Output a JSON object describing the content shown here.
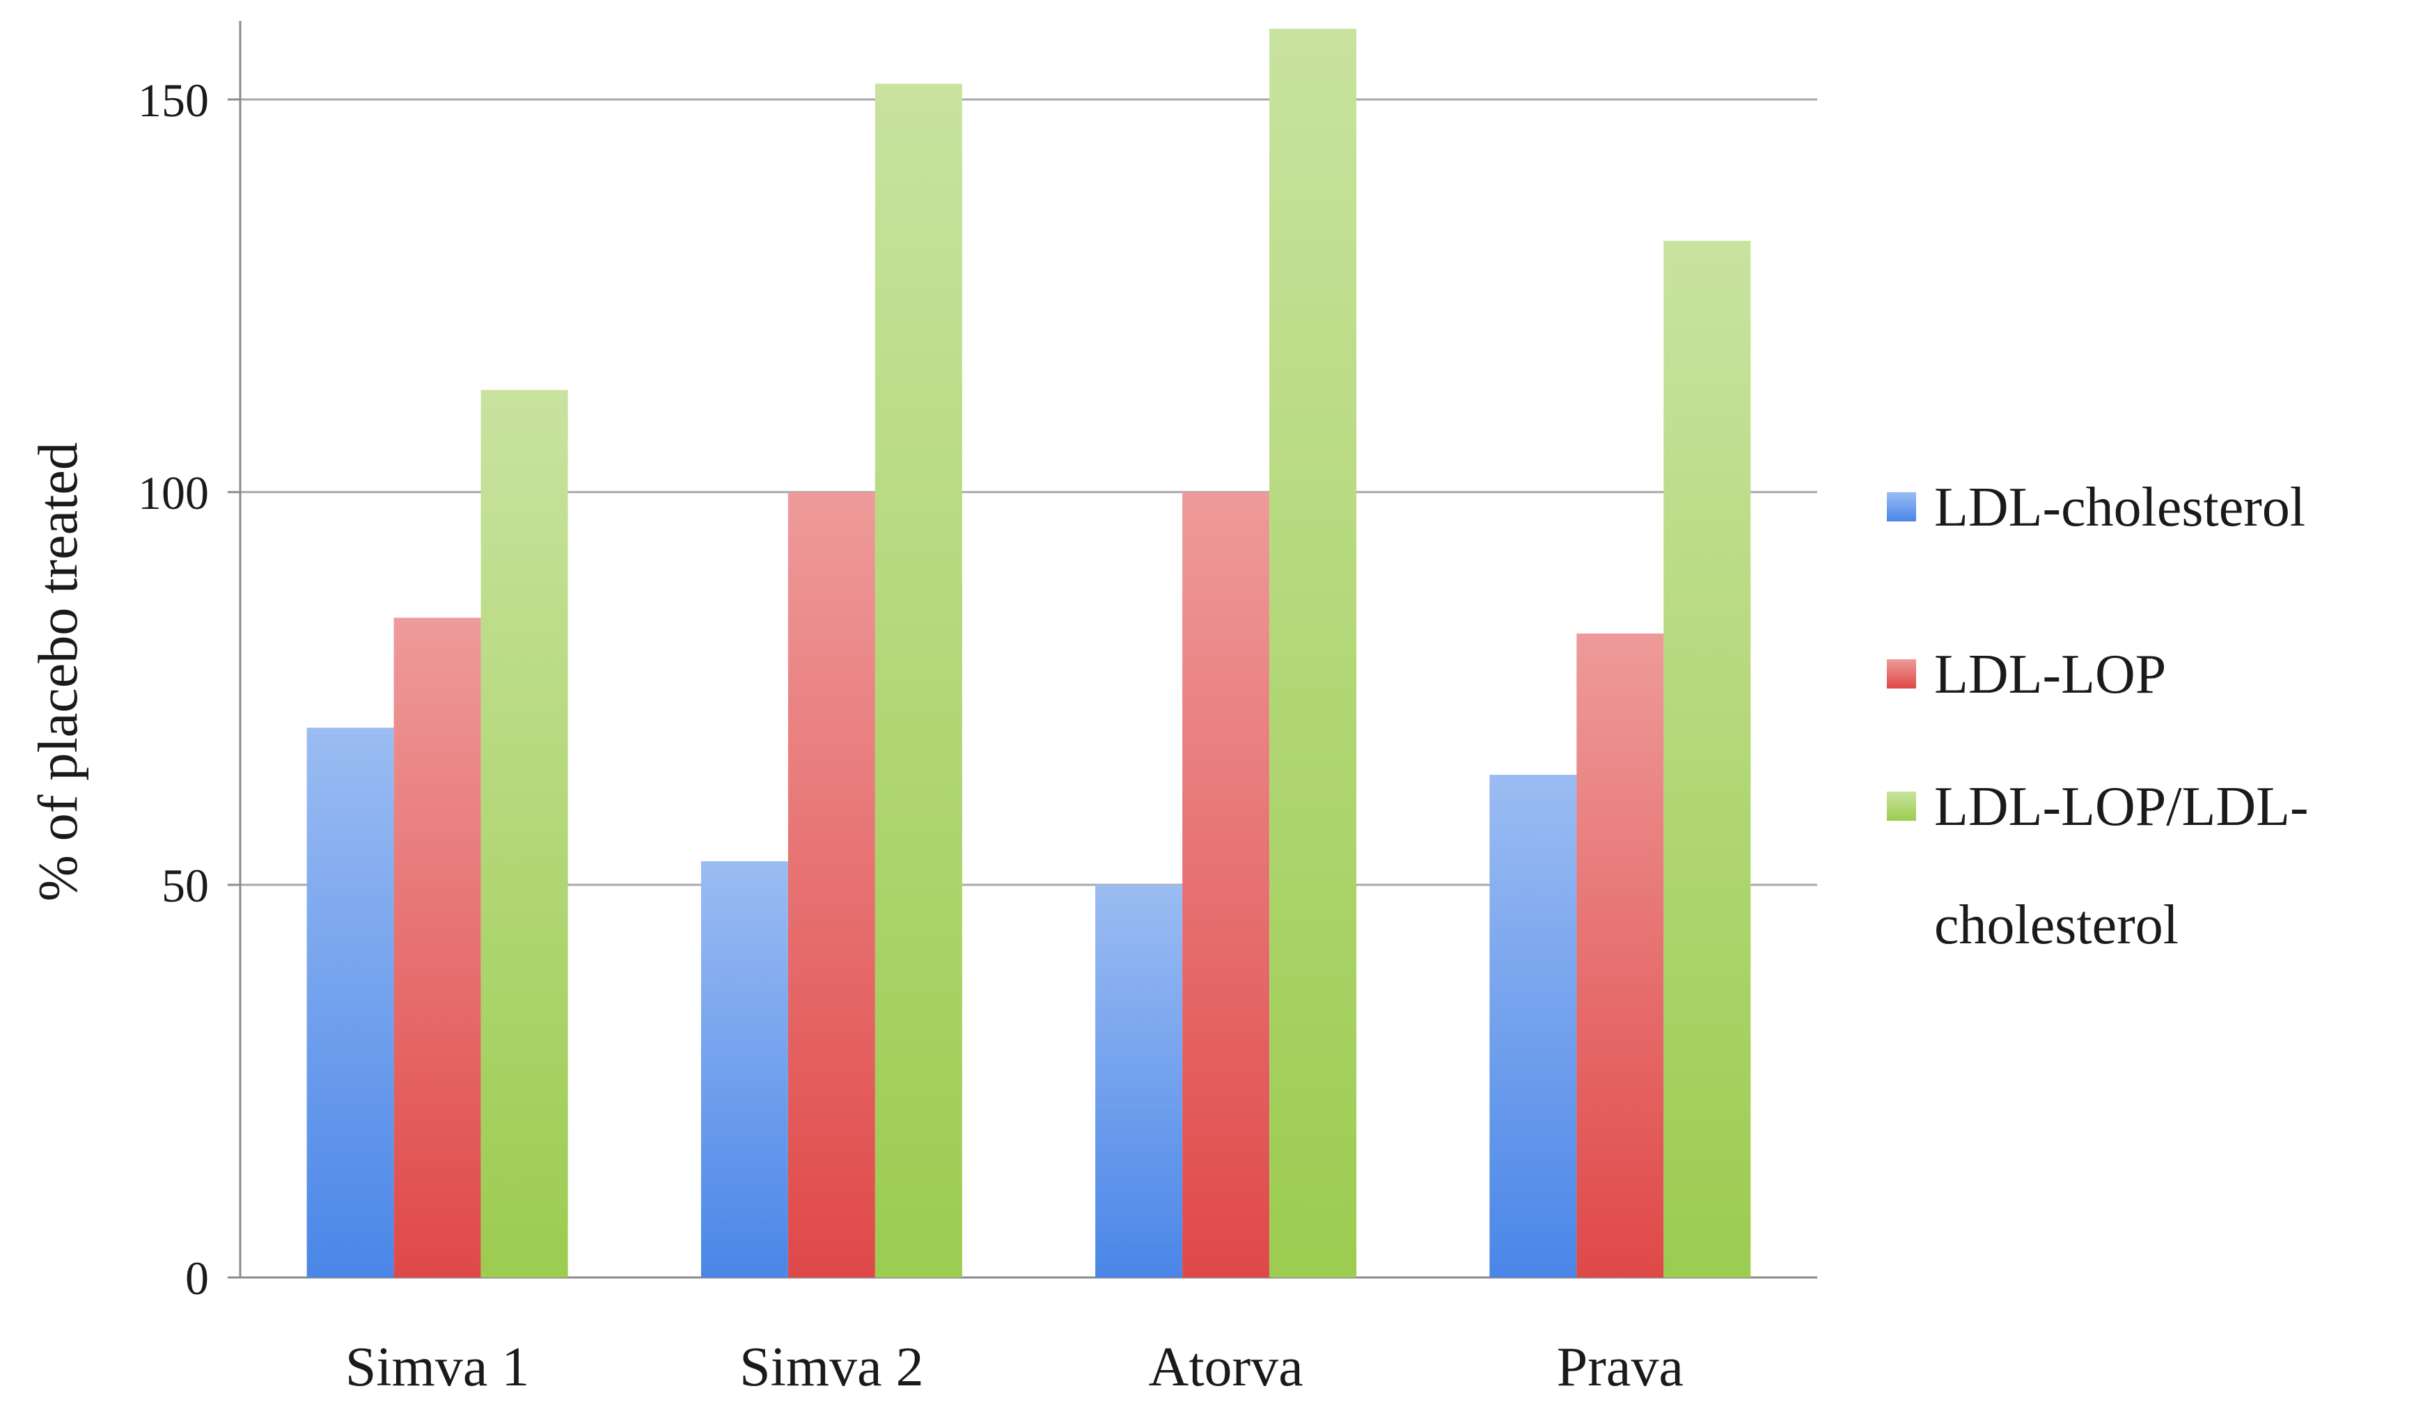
{
  "chart_data": {
    "type": "bar",
    "title": "",
    "xlabel": "",
    "ylabel": "% of placebo treated",
    "ylim": [
      0,
      160
    ],
    "yticks": [
      0,
      50,
      100,
      150
    ],
    "grid": true,
    "legend_position": "right",
    "categories": [
      "Simva 1",
      "Simva 2",
      "Atorva",
      "Prava"
    ],
    "series": [
      {
        "name": "LDL-cholesterol",
        "color": "#4a86e8",
        "values": [
          70,
          53,
          50,
          64
        ]
      },
      {
        "name": "LDL-LOP",
        "color": "#e04848",
        "values": [
          84,
          100,
          100,
          82
        ]
      },
      {
        "name": "LDL-LOP/LDL-cholesterol",
        "color": "#9ccc50",
        "values": [
          113,
          152,
          159,
          132
        ]
      }
    ]
  }
}
